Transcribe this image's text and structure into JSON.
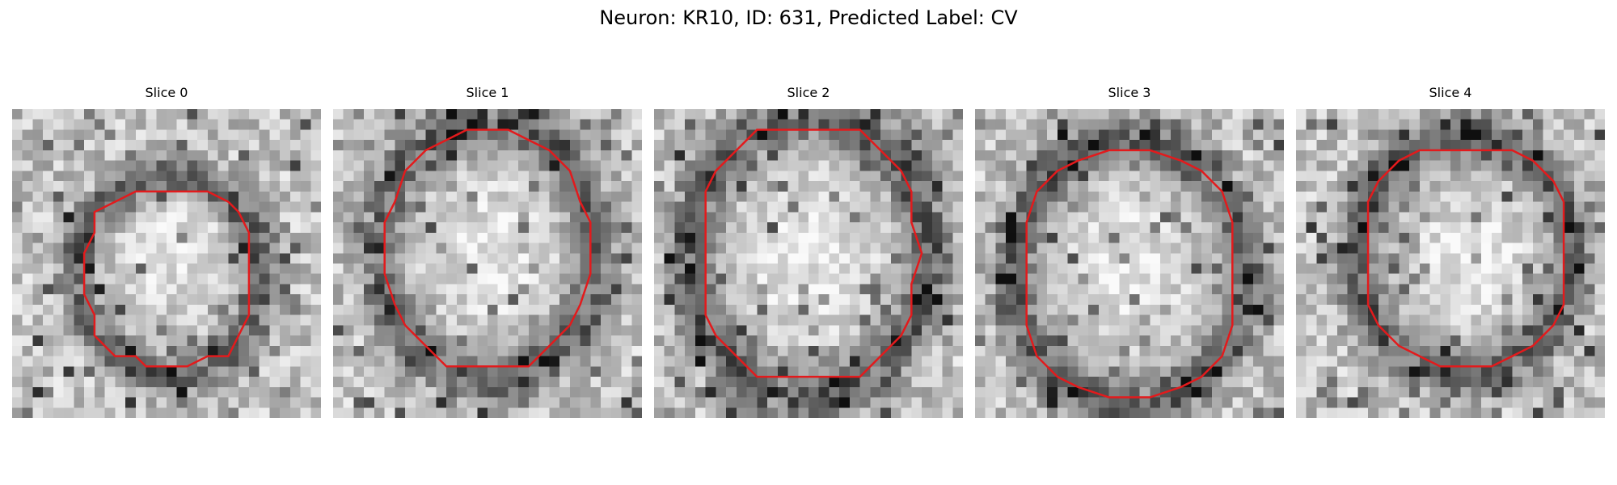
{
  "figure": {
    "title": "Neuron: KR10, ID: 631, Predicted Label: CV",
    "contour_color": "#e31a1c",
    "colormap": "gray"
  },
  "slices": [
    {
      "label": "Slice 0",
      "contour_center": [
        0.51,
        0.54
      ],
      "contour_radius": [
        0.27,
        0.29
      ],
      "bright_center": [
        0.53,
        0.45
      ],
      "seed": 11
    },
    {
      "label": "Slice 1",
      "contour_center": [
        0.5,
        0.46
      ],
      "contour_radius": [
        0.32,
        0.38
      ],
      "bright_center": [
        0.52,
        0.47
      ],
      "seed": 23
    },
    {
      "label": "Slice 2",
      "contour_center": [
        0.5,
        0.47
      ],
      "contour_radius": [
        0.35,
        0.41
      ],
      "bright_center": [
        0.5,
        0.5
      ],
      "seed": 37
    },
    {
      "label": "Slice 3",
      "contour_center": [
        0.5,
        0.53
      ],
      "contour_radius": [
        0.34,
        0.39
      ],
      "bright_center": [
        0.48,
        0.52
      ],
      "seed": 41
    },
    {
      "label": "Slice 4",
      "contour_center": [
        0.55,
        0.47
      ],
      "contour_radius": [
        0.32,
        0.35
      ],
      "bright_center": [
        0.55,
        0.47
      ],
      "seed": 53
    }
  ]
}
